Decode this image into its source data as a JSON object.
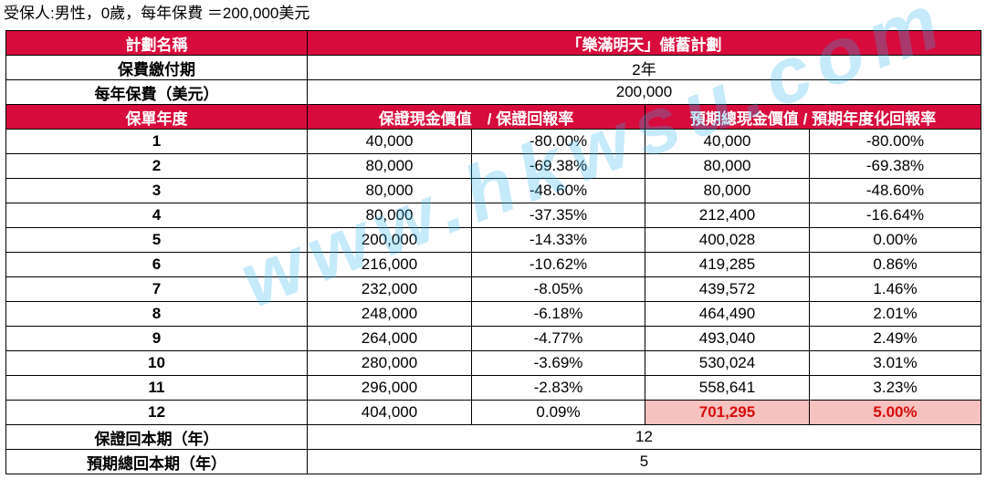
{
  "caption": "受保人:男性，0歲，每年保費 ＝200,000美元",
  "header": {
    "plan_name_label": "計劃名稱",
    "plan_name": "「樂滿明天」儲蓄計劃"
  },
  "payment_term": {
    "label": "保費繳付期",
    "value": "2年"
  },
  "annual_premium": {
    "label": "每年保費（美元）",
    "value": "200,000"
  },
  "columns": {
    "policy_year": "保單年度",
    "guaranteed": "保證現金價值　/ 保證回報率",
    "projected": "預期總現金價值 / 預期年度化回報率"
  },
  "rows": [
    {
      "year": "1",
      "g_cash": "40,000",
      "g_return": "-80.00%",
      "p_cash": "40,000",
      "p_return": "-80.00%"
    },
    {
      "year": "2",
      "g_cash": "80,000",
      "g_return": "-69.38%",
      "p_cash": "80,000",
      "p_return": "-69.38%"
    },
    {
      "year": "3",
      "g_cash": "80,000",
      "g_return": "-48.60%",
      "p_cash": "80,000",
      "p_return": "-48.60%"
    },
    {
      "year": "4",
      "g_cash": "80,000",
      "g_return": "-37.35%",
      "p_cash": "212,400",
      "p_return": "-16.64%"
    },
    {
      "year": "5",
      "g_cash": "200,000",
      "g_return": "-14.33%",
      "p_cash": "400,028",
      "p_return": "0.00%"
    },
    {
      "year": "6",
      "g_cash": "216,000",
      "g_return": "-10.62%",
      "p_cash": "419,285",
      "p_return": "0.86%"
    },
    {
      "year": "7",
      "g_cash": "232,000",
      "g_return": "-8.05%",
      "p_cash": "439,572",
      "p_return": "1.46%"
    },
    {
      "year": "8",
      "g_cash": "248,000",
      "g_return": "-6.18%",
      "p_cash": "464,490",
      "p_return": "2.01%"
    },
    {
      "year": "9",
      "g_cash": "264,000",
      "g_return": "-4.77%",
      "p_cash": "493,040",
      "p_return": "2.49%"
    },
    {
      "year": "10",
      "g_cash": "280,000",
      "g_return": "-3.69%",
      "p_cash": "530,024",
      "p_return": "3.01%"
    },
    {
      "year": "11",
      "g_cash": "296,000",
      "g_return": "-2.83%",
      "p_cash": "558,641",
      "p_return": "3.23%"
    },
    {
      "year": "12",
      "g_cash": "404,000",
      "g_return": "0.09%",
      "p_cash": "701,295",
      "p_return": "5.00%"
    }
  ],
  "guaranteed_breakeven": {
    "label": "保證回本期（年）",
    "value": "12"
  },
  "projected_breakeven": {
    "label": "預期總回本期（年）",
    "value": "5"
  },
  "watermark": "www.hkwsu.com",
  "colors": {
    "header_bg": "#d70b3c",
    "highlight_bg": "#f6c2c0",
    "highlight_text": "#d70b0b"
  }
}
